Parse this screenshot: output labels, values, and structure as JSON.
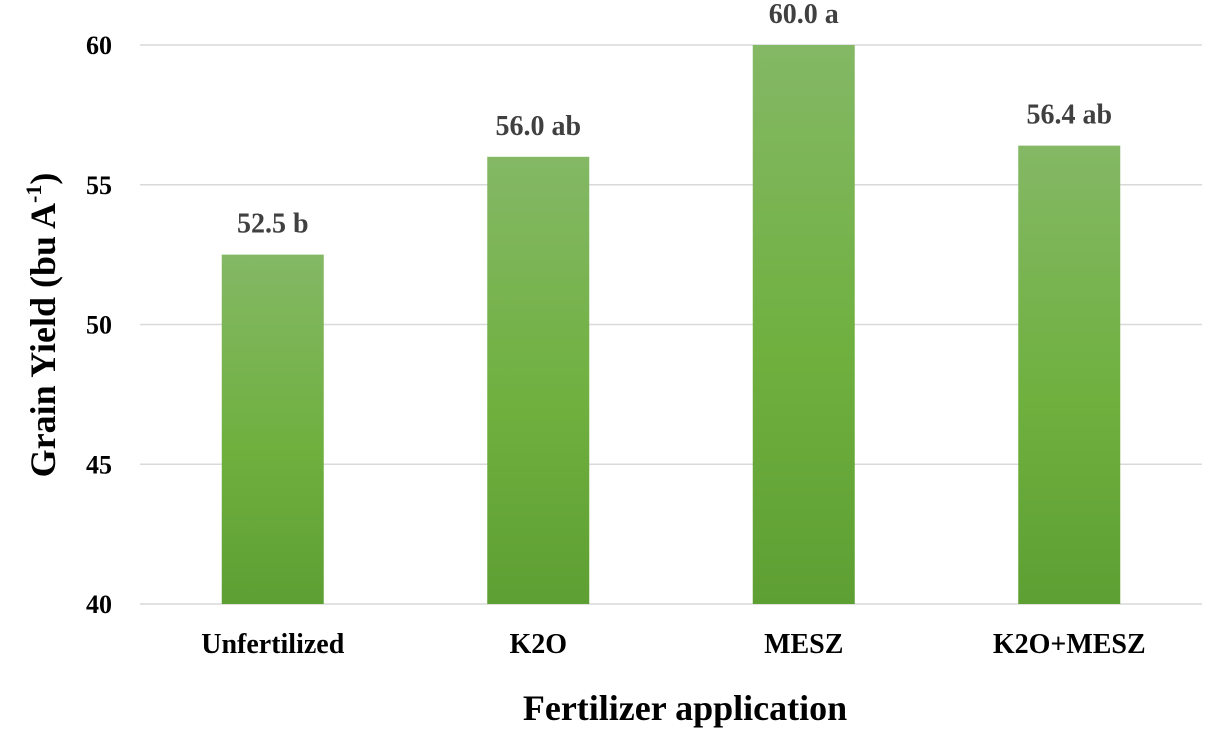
{
  "chart_data": {
    "type": "bar",
    "title": "",
    "categories": [
      "Unfertilized",
      "K2O",
      "MESZ",
      "K2O+MESZ"
    ],
    "values": [
      52.5,
      56.0,
      60.0,
      56.4
    ],
    "data_labels": [
      "52.5 b",
      "56.0 ab",
      "60.0 a",
      "56.4 ab"
    ],
    "xlabel": "Fertilizer application",
    "ylabel_main": "Grain Yield (bu A",
    "ylabel_sup": "-1",
    "ylabel_close": ")",
    "ylim": [
      40,
      60
    ],
    "yticks": [
      40,
      45,
      50,
      55,
      60
    ],
    "grid": true,
    "legend": "none",
    "colors": {
      "bar_top": "#84b865",
      "bar_mid": "#6fb03f",
      "bar_bottom": "#5e9f33",
      "grid": "#d9d9d9",
      "data_label": "#404040"
    }
  }
}
